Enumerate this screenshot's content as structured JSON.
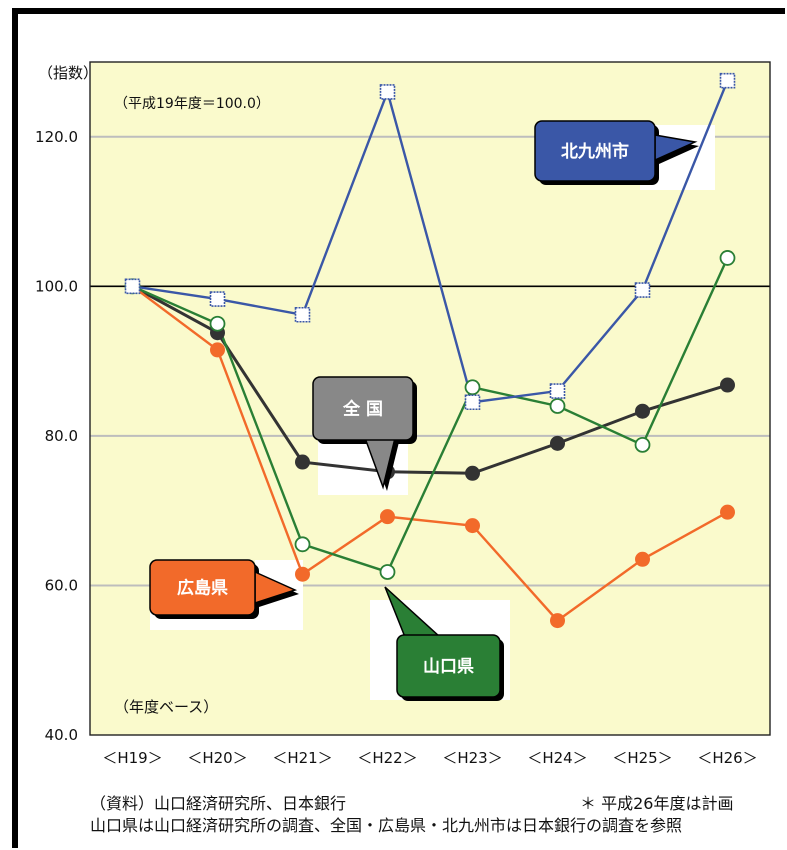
{
  "chart_data": {
    "type": "line",
    "ylabel": "（指数）",
    "base_note": "（平成19年度＝100.0）",
    "basis_note": "（年度ベース）",
    "categories": [
      "＜H19＞",
      "＜H20＞",
      "＜H21＞",
      "＜H22＞",
      "＜H23＞",
      "＜H24＞",
      "＜H25＞",
      "＜H26＞"
    ],
    "ylim": [
      40,
      130
    ],
    "yticks": [
      "40.0",
      "60.0",
      "80.0",
      "100.0",
      "120.0"
    ],
    "ytick_values": [
      40,
      60,
      80,
      100,
      120
    ],
    "reference_line": 100,
    "grid": true,
    "series": [
      {
        "name": "北九州市",
        "color": "#3a57a7",
        "marker": "square",
        "values": [
          100.0,
          98.3,
          96.2,
          126.0,
          84.5,
          86.0,
          99.5,
          127.5
        ]
      },
      {
        "name": "山口県",
        "color": "#2a7f35",
        "marker": "open-circle",
        "values": [
          100.0,
          95.0,
          65.5,
          61.8,
          86.5,
          84.0,
          78.8,
          103.8
        ]
      },
      {
        "name": "広島県",
        "color": "#f26a2a",
        "marker": "circle",
        "values": [
          100.0,
          91.5,
          61.5,
          69.2,
          68.0,
          55.3,
          63.5,
          69.8
        ]
      },
      {
        "name": "全 国",
        "color": "#333333",
        "marker": "circle",
        "values": [
          100.0,
          93.8,
          76.5,
          75.2,
          75.0,
          79.0,
          83.3,
          86.8
        ]
      }
    ],
    "callouts": [
      {
        "label": "北九州市",
        "fill": "#3a57a7",
        "text_color": "#ffffff",
        "series": "北九州市"
      },
      {
        "label": "全 国",
        "fill": "#888888",
        "text_color": "#ffffff",
        "series": "全 国"
      },
      {
        "label": "広島県",
        "fill": "#f26a2a",
        "text_color": "#ffffff",
        "series": "広島県"
      },
      {
        "label": "山口県",
        "fill": "#2a7f35",
        "text_color": "#ffffff",
        "series": "山口県"
      }
    ],
    "colors": {
      "plot_bg": "#fafacc",
      "grid": "#bdbdbd"
    }
  },
  "footer": {
    "source": "（資料）山口経済研究所、日本銀行",
    "plan_note": "＊ 平成26年度は計画",
    "explanation": "山口県は山口経済研究所の調査、全国・広島県・北九州市は日本銀行の調査を参照"
  }
}
